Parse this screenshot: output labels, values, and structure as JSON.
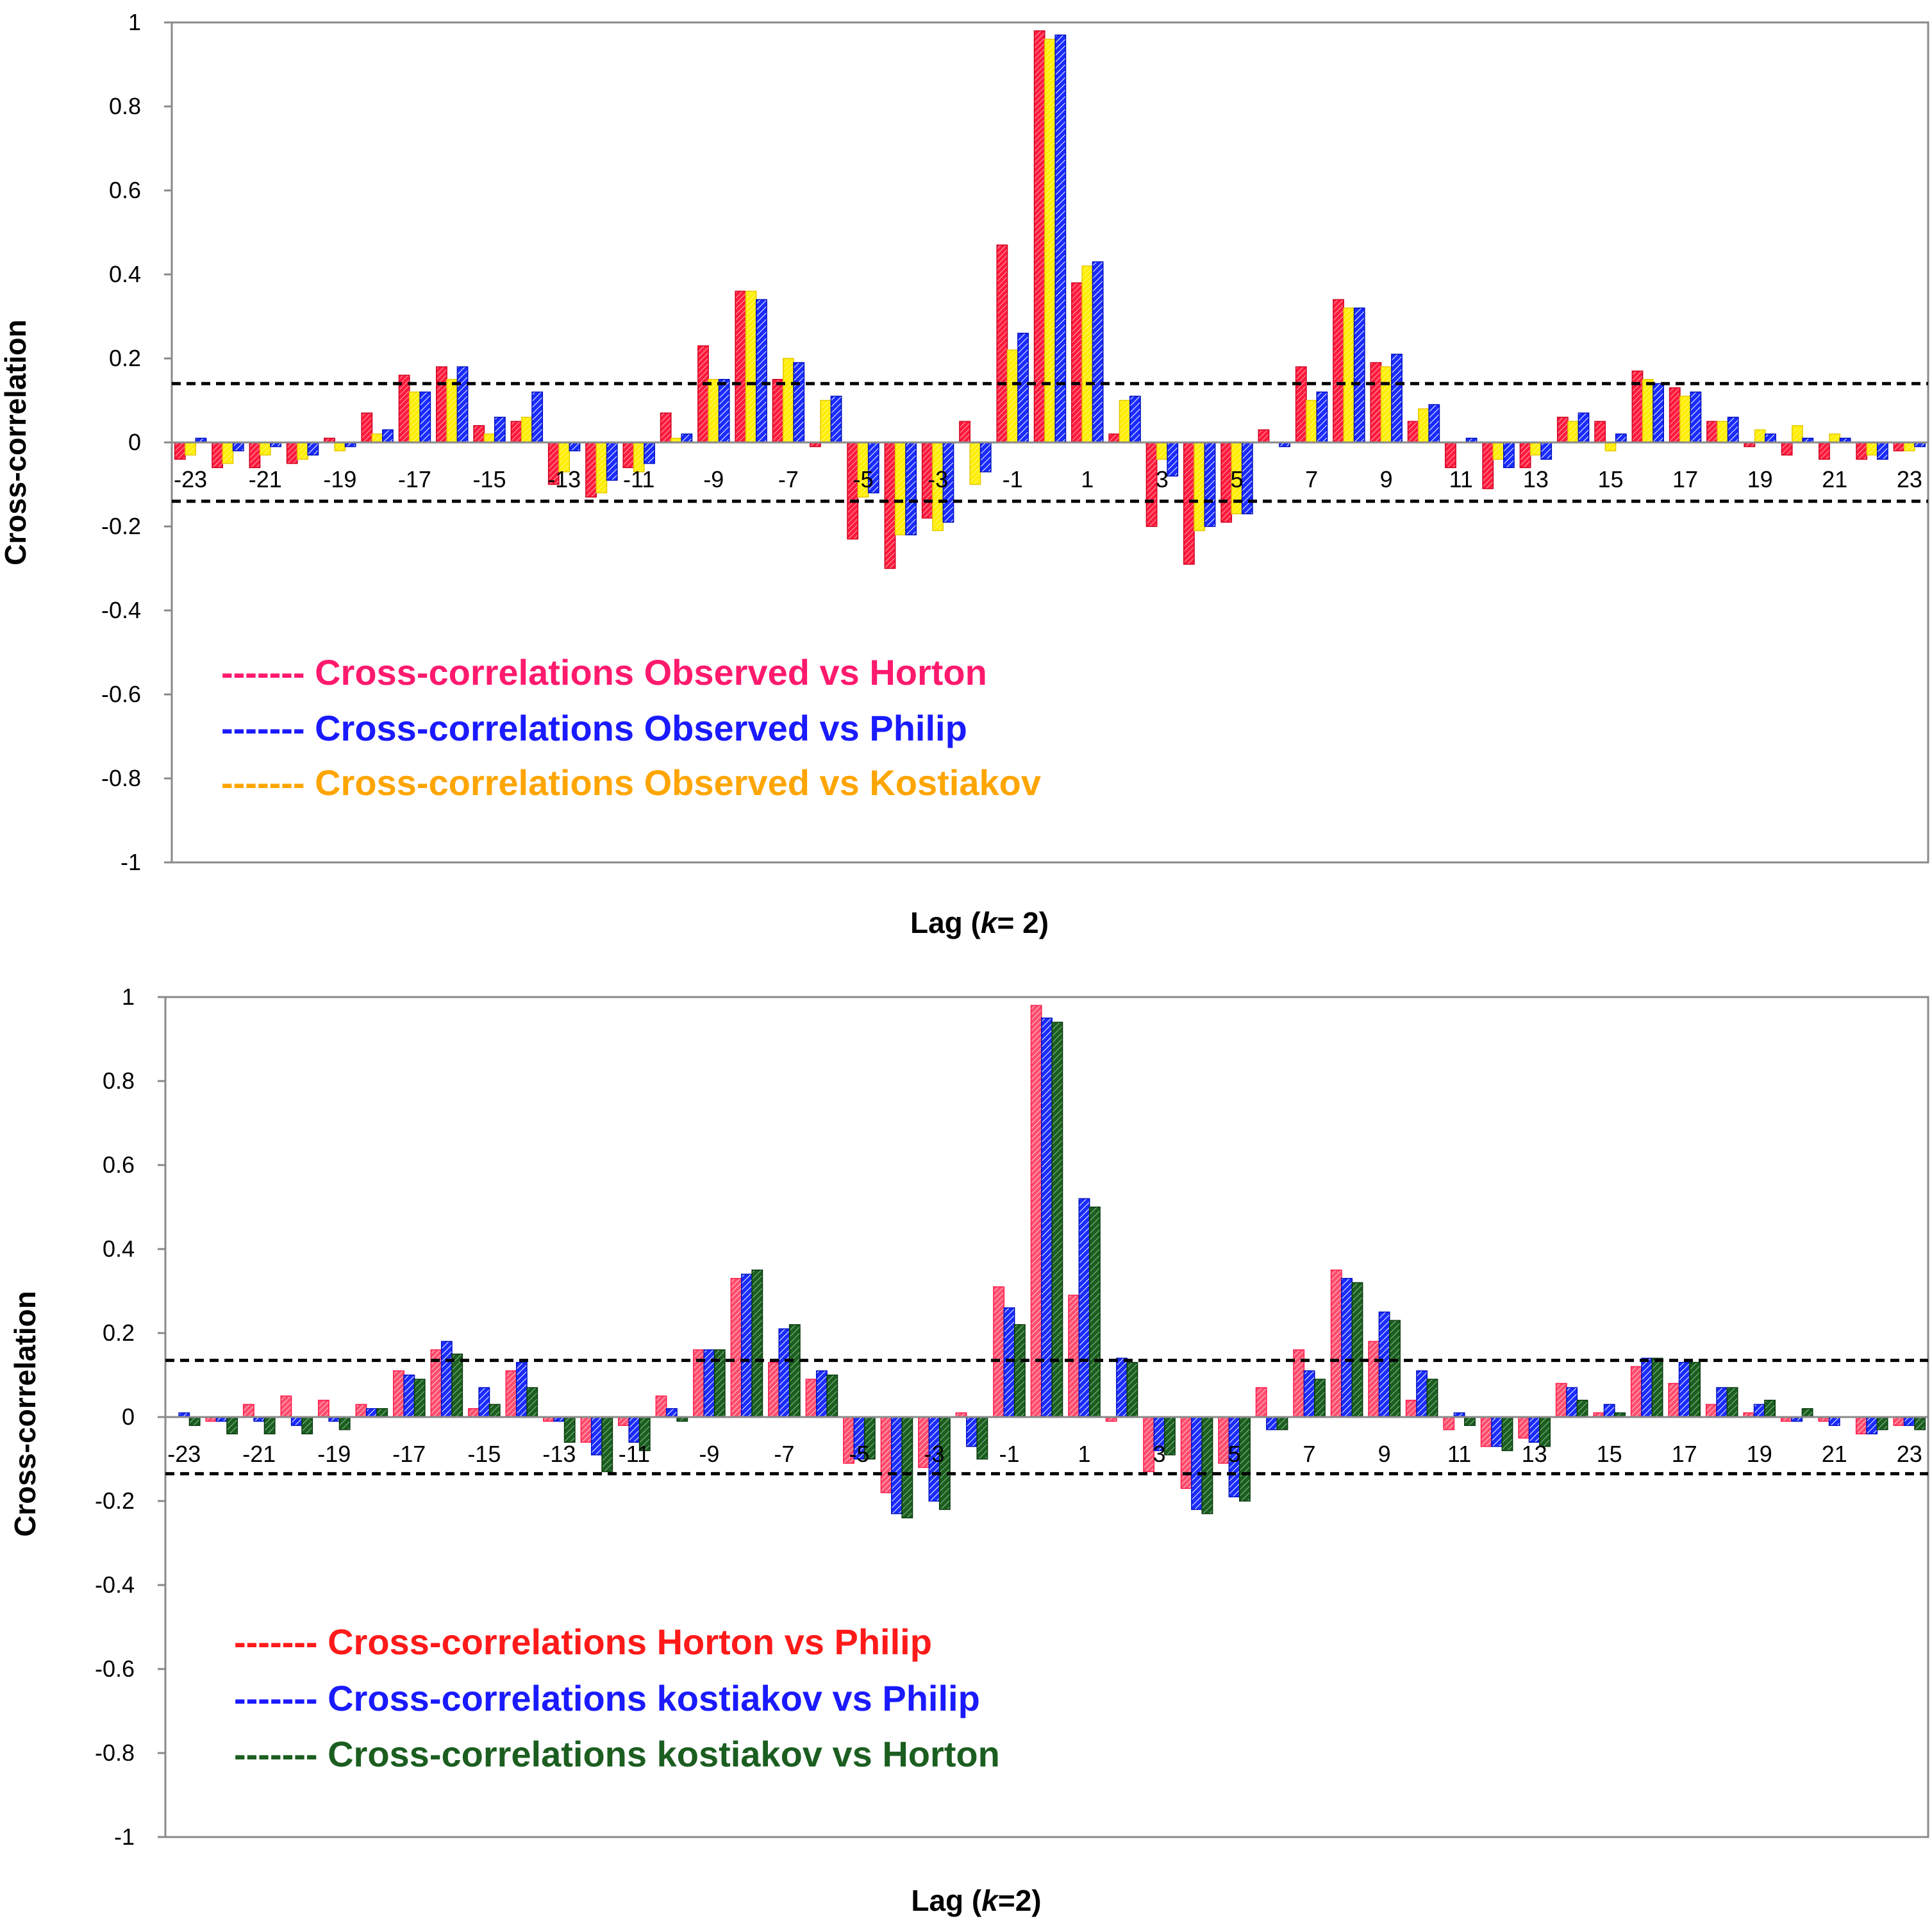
{
  "chart_data": [
    {
      "type": "bar",
      "title": "",
      "ylabel": "Cross-correlation",
      "xlabel_prefix": "Lag (",
      "xlabel_italic": "k",
      "xlabel_suffix": "= 2)",
      "ylim": [
        -1,
        1
      ],
      "yticks": [
        "1",
        "0.8",
        "0.6",
        "0.4",
        "0.2",
        "0",
        "-0.2",
        "-0.4",
        "-0.6",
        "-0.8",
        "-1"
      ],
      "ytick_values": [
        1,
        0.8,
        0.6,
        0.4,
        0.2,
        0,
        -0.2,
        -0.4,
        -0.6,
        -0.8,
        -1
      ],
      "confidence_bounds": [
        0.14,
        -0.14
      ],
      "categories": [
        -23,
        -22,
        -21,
        -20,
        -19,
        -18,
        -17,
        -16,
        -15,
        -14,
        -13,
        -12,
        -11,
        -10,
        -9,
        -8,
        -7,
        -6,
        -5,
        -4,
        -3,
        -2,
        -1,
        0,
        1,
        2,
        3,
        4,
        5,
        6,
        7,
        8,
        9,
        10,
        11,
        12,
        13,
        14,
        15,
        16,
        17,
        18,
        19,
        20,
        21,
        22,
        23
      ],
      "tick_labels": [
        "-23",
        "-21",
        "-19",
        "-17",
        "-15",
        "-13",
        "-11",
        "-9",
        "-7",
        "-5",
        "-3",
        "-1",
        "1",
        "3",
        "5",
        "7",
        "9",
        "11",
        "13",
        "15",
        "17",
        "19",
        "21",
        "23"
      ],
      "series": [
        {
          "name": "Observed vs Horton",
          "color": "#ff1a3c",
          "values": [
            -0.04,
            -0.06,
            -0.06,
            -0.05,
            0.01,
            0.07,
            0.16,
            0.18,
            0.04,
            0.05,
            -0.1,
            -0.13,
            -0.06,
            0.07,
            0.23,
            0.36,
            0.15,
            -0.01,
            -0.23,
            -0.3,
            -0.18,
            0.05,
            0.47,
            0.98,
            0.38,
            0.02,
            -0.2,
            -0.29,
            -0.19,
            0.03,
            0.18,
            0.34,
            0.19,
            0.05,
            -0.06,
            -0.11,
            -0.06,
            0.06,
            0.05,
            0.17,
            0.13,
            0.05,
            -0.01,
            -0.03,
            -0.04,
            -0.04,
            -0.02
          ]
        },
        {
          "name": "Observed vs Kostiakov",
          "color": "#ffee00",
          "values": [
            -0.03,
            -0.05,
            -0.03,
            -0.04,
            -0.02,
            0.02,
            0.12,
            0.15,
            0.02,
            0.06,
            -0.07,
            -0.12,
            -0.07,
            0.01,
            0.15,
            0.36,
            0.2,
            0.1,
            -0.13,
            -0.22,
            -0.21,
            -0.1,
            0.22,
            0.96,
            0.42,
            0.1,
            -0.04,
            -0.21,
            -0.17,
            0.0,
            0.1,
            0.32,
            0.18,
            0.08,
            0.0,
            -0.04,
            -0.03,
            0.05,
            -0.02,
            0.15,
            0.11,
            0.05,
            0.03,
            0.04,
            0.02,
            -0.03,
            -0.02
          ]
        },
        {
          "name": "Observed vs Philip",
          "color": "#1a2cff",
          "values": [
            0.01,
            -0.02,
            -0.01,
            -0.03,
            -0.01,
            0.03,
            0.12,
            0.18,
            0.06,
            0.12,
            -0.02,
            -0.09,
            -0.05,
            0.02,
            0.15,
            0.34,
            0.19,
            0.11,
            -0.12,
            -0.22,
            -0.19,
            -0.07,
            0.26,
            0.97,
            0.43,
            0.11,
            -0.08,
            -0.2,
            -0.17,
            -0.01,
            0.12,
            0.32,
            0.21,
            0.09,
            0.01,
            -0.06,
            -0.04,
            0.07,
            0.02,
            0.14,
            0.12,
            0.06,
            0.02,
            0.01,
            0.01,
            -0.04,
            -0.01
          ]
        }
      ],
      "legend": [
        {
          "label": "------- Cross-correlations Observed vs Horton",
          "color": "#ff1a6e"
        },
        {
          "label": "------- Cross-correlations Observed vs Philip",
          "color": "#1a1aff"
        },
        {
          "label": "------- Cross-correlations Observed vs Kostiakov",
          "color": "#ffa500"
        }
      ]
    },
    {
      "type": "bar",
      "title": "",
      "ylabel": "Cross-correlation",
      "xlabel_prefix": "Lag (",
      "xlabel_italic": "k",
      "xlabel_suffix": "=2)",
      "ylim": [
        -1,
        1
      ],
      "yticks": [
        "1",
        "0.8",
        "0.6",
        "0.4",
        "0.2",
        "0",
        "-0.2",
        "-0.4",
        "-0.6",
        "-0.8",
        "-1"
      ],
      "ytick_values": [
        1,
        0.8,
        0.6,
        0.4,
        0.2,
        0,
        -0.2,
        -0.4,
        -0.6,
        -0.8,
        -1
      ],
      "confidence_bounds": [
        0.135,
        -0.135
      ],
      "categories": [
        -23,
        -22,
        -21,
        -20,
        -19,
        -18,
        -17,
        -16,
        -15,
        -14,
        -13,
        -12,
        -11,
        -10,
        -9,
        -8,
        -7,
        -6,
        -5,
        -4,
        -3,
        -2,
        -1,
        0,
        1,
        2,
        3,
        4,
        5,
        6,
        7,
        8,
        9,
        10,
        11,
        12,
        13,
        14,
        15,
        16,
        17,
        18,
        19,
        20,
        21,
        22,
        23
      ],
      "tick_labels": [
        "-23",
        "-21",
        "-19",
        "-17",
        "-15",
        "-13",
        "-11",
        "-9",
        "-7",
        "-5",
        "-3",
        "-1",
        "1",
        "3",
        "5",
        "7",
        "9",
        "11",
        "13",
        "15",
        "17",
        "19",
        "21",
        "23"
      ],
      "series": [
        {
          "name": "Horton vs Philip",
          "color": "#ff4d6d",
          "values": [
            0.0,
            -0.01,
            0.03,
            0.05,
            0.04,
            0.03,
            0.11,
            0.16,
            0.02,
            0.11,
            -0.01,
            -0.06,
            -0.02,
            0.05,
            0.16,
            0.33,
            0.13,
            0.09,
            -0.11,
            -0.18,
            -0.12,
            0.01,
            0.31,
            0.98,
            0.29,
            -0.01,
            -0.13,
            -0.17,
            -0.11,
            0.07,
            0.16,
            0.35,
            0.18,
            0.04,
            -0.03,
            -0.07,
            -0.05,
            0.08,
            0.01,
            0.12,
            0.08,
            0.03,
            0.01,
            -0.01,
            -0.01,
            -0.04,
            -0.02
          ]
        },
        {
          "name": "kostiakov vs Philip",
          "color": "#1a2cff",
          "values": [
            0.01,
            -0.01,
            -0.01,
            -0.02,
            -0.01,
            0.02,
            0.1,
            0.18,
            0.07,
            0.13,
            -0.01,
            -0.09,
            -0.06,
            0.02,
            0.16,
            0.34,
            0.21,
            0.11,
            -0.1,
            -0.23,
            -0.2,
            -0.07,
            0.26,
            0.95,
            0.52,
            0.14,
            -0.08,
            -0.22,
            -0.19,
            -0.03,
            0.11,
            0.33,
            0.25,
            0.11,
            0.01,
            -0.07,
            -0.06,
            0.07,
            0.03,
            0.14,
            0.13,
            0.07,
            0.03,
            -0.01,
            -0.02,
            -0.04,
            -0.02
          ]
        },
        {
          "name": "kostiakov vs Horton",
          "color": "#1b5e20",
          "values": [
            -0.02,
            -0.04,
            -0.04,
            -0.04,
            -0.03,
            0.02,
            0.09,
            0.15,
            0.03,
            0.07,
            -0.06,
            -0.13,
            -0.08,
            -0.01,
            0.16,
            0.35,
            0.22,
            0.1,
            -0.1,
            -0.24,
            -0.22,
            -0.1,
            0.22,
            0.94,
            0.5,
            0.13,
            -0.09,
            -0.23,
            -0.2,
            -0.03,
            0.09,
            0.32,
            0.23,
            0.09,
            -0.02,
            -0.08,
            -0.07,
            0.04,
            0.01,
            0.14,
            0.13,
            0.07,
            0.04,
            0.02,
            0.0,
            -0.03,
            -0.03
          ]
        }
      ],
      "legend": [
        {
          "label": "------- Cross-correlations Horton vs Philip",
          "color": "#ff1a1a"
        },
        {
          "label": "------- Cross-correlations kostiakov vs Philip",
          "color": "#1a1aff"
        },
        {
          "label": "------- Cross-correlations kostiakov vs Horton",
          "color": "#1b5e20"
        }
      ]
    }
  ]
}
